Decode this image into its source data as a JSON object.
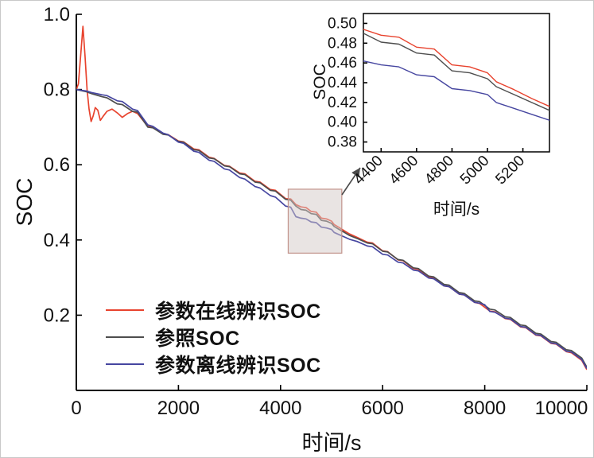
{
  "colors": {
    "axis": "#000000",
    "text": "#111111",
    "highlight_fill": "#d3cac7",
    "highlight_stroke": "#c2938b",
    "arrow": "#4a4a4a"
  },
  "main_axes": {
    "ylabel": "SOC",
    "xlabel": "时间/s",
    "xlim": [
      0,
      10000
    ],
    "ylim": [
      0,
      1.0
    ],
    "xticks": [
      0,
      2000,
      4000,
      6000,
      8000,
      10000
    ],
    "xtick_labels": [
      "0",
      "2000",
      "4000",
      "6000",
      "8000",
      "10000"
    ],
    "yticks": [
      0.2,
      0.4,
      0.6,
      0.8,
      1.0
    ],
    "ytick_labels": [
      "0.2",
      "0.4",
      "0.6",
      "0.8",
      "1.0"
    ]
  },
  "inset_axes": {
    "ylabel": "SOC",
    "xlabel": "时间/s",
    "xlim": [
      4300,
      5350
    ],
    "ylim": [
      0.37,
      0.51
    ],
    "xticks": [
      4400,
      4600,
      4800,
      5000,
      5200
    ],
    "xtick_labels": [
      "4400",
      "4600",
      "4800",
      "5000",
      "5200"
    ],
    "yticks": [
      0.38,
      0.4,
      0.42,
      0.44,
      0.46,
      0.48,
      0.5
    ],
    "ytick_labels": [
      "0.38",
      "0.40",
      "0.42",
      "0.44",
      "0.46",
      "0.48",
      "0.50"
    ]
  },
  "legend": [
    {
      "label": "参数在线辨识SOC",
      "color": "#e8432e"
    },
    {
      "label": "参照SOC",
      "color": "#4d4d4d"
    },
    {
      "label": "参数离线辨识SOC",
      "color": "#4646a0"
    }
  ],
  "highlight": {
    "x": [
      4150,
      5200
    ],
    "y": [
      0.365,
      0.535
    ]
  },
  "arrow": {
    "from": [
      429,
      244
    ],
    "to": [
      452,
      210
    ]
  },
  "chart_data": {
    "type": "line",
    "title": "",
    "xlabel": "时间/s",
    "ylabel": "SOC",
    "xlim": [
      0,
      10000
    ],
    "ylim": [
      0,
      1.0
    ],
    "grid": false,
    "legend_position": "lower-left-inside",
    "inset": {
      "xlim": [
        4300,
        5350
      ],
      "ylim": [
        0.37,
        0.51
      ],
      "xlabel": "时间/s",
      "ylabel": "SOC"
    },
    "series": [
      {
        "name": "参数在线辨识SOC",
        "color": "#e8432e",
        "points": [
          [
            0,
            0.8
          ],
          [
            40,
            0.815
          ],
          [
            90,
            0.9
          ],
          [
            130,
            0.968
          ],
          [
            170,
            0.89
          ],
          [
            210,
            0.8
          ],
          [
            250,
            0.748
          ],
          [
            290,
            0.715
          ],
          [
            330,
            0.73
          ],
          [
            370,
            0.752
          ],
          [
            420,
            0.745
          ],
          [
            470,
            0.718
          ],
          [
            520,
            0.728
          ],
          [
            600,
            0.742
          ],
          [
            700,
            0.748
          ],
          [
            800,
            0.738
          ],
          [
            900,
            0.726
          ],
          [
            1000,
            0.736
          ],
          [
            1100,
            0.742
          ],
          [
            1200,
            0.736
          ],
          [
            1400,
            0.702
          ],
          [
            1500,
            0.699
          ],
          [
            1700,
            0.682
          ],
          [
            1800,
            0.68
          ],
          [
            2000,
            0.663
          ],
          [
            2100,
            0.661
          ],
          [
            2300,
            0.642
          ],
          [
            2400,
            0.64
          ],
          [
            2600,
            0.62
          ],
          [
            2700,
            0.617
          ],
          [
            2900,
            0.598
          ],
          [
            3000,
            0.596
          ],
          [
            3200,
            0.578
          ],
          [
            3300,
            0.576
          ],
          [
            3500,
            0.556
          ],
          [
            3600,
            0.554
          ],
          [
            3800,
            0.534
          ],
          [
            3900,
            0.532
          ],
          [
            4100,
            0.51
          ],
          [
            4200,
            0.509
          ],
          [
            4300,
            0.494
          ],
          [
            4400,
            0.488
          ],
          [
            4500,
            0.486
          ],
          [
            4600,
            0.476
          ],
          [
            4700,
            0.474
          ],
          [
            4800,
            0.458
          ],
          [
            4900,
            0.456
          ],
          [
            5000,
            0.45
          ],
          [
            5050,
            0.441
          ],
          [
            5150,
            0.433
          ],
          [
            5250,
            0.424
          ],
          [
            5350,
            0.416
          ],
          [
            5500,
            0.407
          ],
          [
            5700,
            0.394
          ],
          [
            5800,
            0.392
          ],
          [
            6000,
            0.371
          ],
          [
            6100,
            0.369
          ],
          [
            6300,
            0.347
          ],
          [
            6400,
            0.345
          ],
          [
            6600,
            0.324
          ],
          [
            6700,
            0.322
          ],
          [
            6900,
            0.301
          ],
          [
            7000,
            0.299
          ],
          [
            7200,
            0.278
          ],
          [
            7300,
            0.276
          ],
          [
            7500,
            0.256
          ],
          [
            7600,
            0.254
          ],
          [
            7800,
            0.234
          ],
          [
            7900,
            0.231
          ],
          [
            8100,
            0.211
          ],
          [
            8200,
            0.209
          ],
          [
            8400,
            0.191
          ],
          [
            8500,
            0.189
          ],
          [
            8700,
            0.169
          ],
          [
            8800,
            0.167
          ],
          [
            9000,
            0.147
          ],
          [
            9100,
            0.145
          ],
          [
            9300,
            0.125
          ],
          [
            9400,
            0.123
          ],
          [
            9600,
            0.103
          ],
          [
            9700,
            0.1
          ],
          [
            9900,
            0.08
          ],
          [
            10000,
            0.055
          ]
        ]
      },
      {
        "name": "参照SOC",
        "color": "#4d4d4d",
        "points": [
          [
            0,
            0.8
          ],
          [
            200,
            0.794
          ],
          [
            300,
            0.789
          ],
          [
            500,
            0.781
          ],
          [
            600,
            0.778
          ],
          [
            800,
            0.762
          ],
          [
            900,
            0.76
          ],
          [
            1100,
            0.742
          ],
          [
            1200,
            0.74
          ],
          [
            1400,
            0.7
          ],
          [
            1500,
            0.698
          ],
          [
            1700,
            0.681
          ],
          [
            1800,
            0.679
          ],
          [
            2000,
            0.662
          ],
          [
            2100,
            0.66
          ],
          [
            2300,
            0.64
          ],
          [
            2400,
            0.638
          ],
          [
            2600,
            0.618
          ],
          [
            2700,
            0.616
          ],
          [
            2900,
            0.597
          ],
          [
            3000,
            0.595
          ],
          [
            3200,
            0.576
          ],
          [
            3300,
            0.574
          ],
          [
            3500,
            0.554
          ],
          [
            3600,
            0.552
          ],
          [
            3800,
            0.532
          ],
          [
            3900,
            0.53
          ],
          [
            4100,
            0.508
          ],
          [
            4200,
            0.506
          ],
          [
            4300,
            0.49
          ],
          [
            4400,
            0.481
          ],
          [
            4500,
            0.479
          ],
          [
            4600,
            0.47
          ],
          [
            4700,
            0.468
          ],
          [
            4800,
            0.452
          ],
          [
            4900,
            0.45
          ],
          [
            5000,
            0.444
          ],
          [
            5050,
            0.436
          ],
          [
            5150,
            0.428
          ],
          [
            5250,
            0.42
          ],
          [
            5350,
            0.412
          ],
          [
            5500,
            0.404
          ],
          [
            5700,
            0.392
          ],
          [
            5800,
            0.39
          ],
          [
            6000,
            0.37
          ],
          [
            6100,
            0.368
          ],
          [
            6300,
            0.348
          ],
          [
            6400,
            0.346
          ],
          [
            6600,
            0.326
          ],
          [
            6700,
            0.324
          ],
          [
            6900,
            0.304
          ],
          [
            7000,
            0.302
          ],
          [
            7200,
            0.282
          ],
          [
            7300,
            0.28
          ],
          [
            7500,
            0.26
          ],
          [
            7600,
            0.258
          ],
          [
            7800,
            0.238
          ],
          [
            7900,
            0.236
          ],
          [
            8100,
            0.216
          ],
          [
            8200,
            0.214
          ],
          [
            8400,
            0.196
          ],
          [
            8500,
            0.194
          ],
          [
            8700,
            0.174
          ],
          [
            8800,
            0.172
          ],
          [
            9000,
            0.152
          ],
          [
            9100,
            0.15
          ],
          [
            9300,
            0.13
          ],
          [
            9400,
            0.128
          ],
          [
            9600,
            0.108
          ],
          [
            9700,
            0.106
          ],
          [
            9900,
            0.086
          ],
          [
            10000,
            0.062
          ]
        ]
      },
      {
        "name": "参数离线辨识SOC",
        "color": "#4646a0",
        "points": [
          [
            0,
            0.8
          ],
          [
            200,
            0.796
          ],
          [
            300,
            0.792
          ],
          [
            500,
            0.786
          ],
          [
            600,
            0.784
          ],
          [
            800,
            0.77
          ],
          [
            900,
            0.768
          ],
          [
            1100,
            0.748
          ],
          [
            1200,
            0.744
          ],
          [
            1400,
            0.706
          ],
          [
            1500,
            0.702
          ],
          [
            1700,
            0.684
          ],
          [
            1800,
            0.68
          ],
          [
            2000,
            0.66
          ],
          [
            2100,
            0.657
          ],
          [
            2300,
            0.636
          ],
          [
            2400,
            0.633
          ],
          [
            2600,
            0.612
          ],
          [
            2700,
            0.609
          ],
          [
            2900,
            0.589
          ],
          [
            3000,
            0.586
          ],
          [
            3200,
            0.566
          ],
          [
            3300,
            0.562
          ],
          [
            3500,
            0.542
          ],
          [
            3600,
            0.538
          ],
          [
            3800,
            0.518
          ],
          [
            3900,
            0.514
          ],
          [
            4100,
            0.49
          ],
          [
            4200,
            0.487
          ],
          [
            4300,
            0.462
          ],
          [
            4400,
            0.458
          ],
          [
            4500,
            0.456
          ],
          [
            4600,
            0.448
          ],
          [
            4700,
            0.446
          ],
          [
            4800,
            0.434
          ],
          [
            4900,
            0.432
          ],
          [
            5000,
            0.428
          ],
          [
            5050,
            0.42
          ],
          [
            5150,
            0.414
          ],
          [
            5250,
            0.408
          ],
          [
            5350,
            0.402
          ],
          [
            5500,
            0.396
          ],
          [
            5700,
            0.384
          ],
          [
            5800,
            0.382
          ],
          [
            6000,
            0.362
          ],
          [
            6100,
            0.36
          ],
          [
            6300,
            0.341
          ],
          [
            6400,
            0.339
          ],
          [
            6600,
            0.32
          ],
          [
            6700,
            0.318
          ],
          [
            6900,
            0.299
          ],
          [
            7000,
            0.297
          ],
          [
            7200,
            0.278
          ],
          [
            7300,
            0.276
          ],
          [
            7500,
            0.256
          ],
          [
            7600,
            0.254
          ],
          [
            7800,
            0.234
          ],
          [
            7900,
            0.232
          ],
          [
            8000,
            0.228
          ],
          [
            8100,
            0.21
          ],
          [
            8200,
            0.208
          ],
          [
            8400,
            0.192
          ],
          [
            8500,
            0.19
          ],
          [
            8700,
            0.17
          ],
          [
            8800,
            0.168
          ],
          [
            9000,
            0.148
          ],
          [
            9100,
            0.146
          ],
          [
            9300,
            0.126
          ],
          [
            9400,
            0.124
          ],
          [
            9600,
            0.104
          ],
          [
            9700,
            0.102
          ],
          [
            9900,
            0.082
          ],
          [
            10000,
            0.058
          ]
        ]
      }
    ]
  }
}
